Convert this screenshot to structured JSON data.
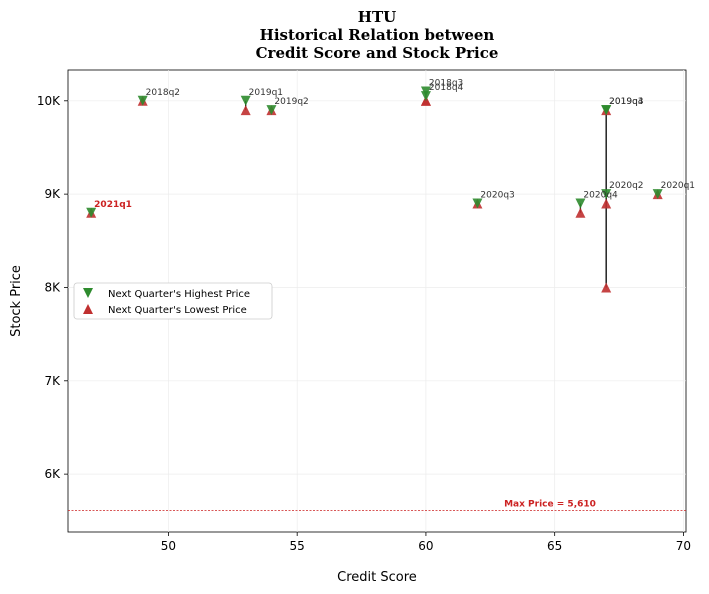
{
  "chart_data": {
    "type": "scatter",
    "title": [
      "HTU",
      "Historical Relation between",
      "Credit Score and Stock Price"
    ],
    "xlabel": "Credit Score",
    "ylabel": "Stock Price",
    "xlim": [
      46.1,
      70.1
    ],
    "ylim": [
      5380,
      10330
    ],
    "xticks": [
      50,
      55,
      60,
      65,
      70
    ],
    "xtick_labels": [
      "50",
      "55",
      "60",
      "65",
      "70"
    ],
    "yticks": [
      6000,
      7000,
      8000,
      9000,
      10000
    ],
    "ytick_labels": [
      "6K",
      "7K",
      "8K",
      "9K",
      "10K"
    ],
    "grid": true,
    "legend_position": "center-left",
    "series": [
      {
        "name": "Next Quarter's Highest Price",
        "marker": "triangle-down",
        "color": "#2e8b2e"
      },
      {
        "name": "Next Quarter's Lowest Price",
        "marker": "triangle-up",
        "color": "#c03030"
      }
    ],
    "points": [
      {
        "label": "2018q2",
        "x": 49,
        "high": 10000,
        "low": 10000
      },
      {
        "label": "2019q1",
        "x": 53,
        "high": 10000,
        "low": 9900
      },
      {
        "label": "2019q2",
        "x": 54,
        "high": 9900,
        "low": 9900
      },
      {
        "label": "2018q3",
        "x": 60,
        "high": 10100,
        "low": 10000
      },
      {
        "label": "2018q4",
        "x": 60,
        "high": 10050,
        "low": 10000
      },
      {
        "label": "2019q3",
        "x": 67,
        "high": 9900,
        "low": 9900
      },
      {
        "label": "2020q1",
        "x": 69,
        "high": 9000,
        "low": 9000
      },
      {
        "label": "2020q2",
        "x": 67,
        "high": 9000,
        "low": 8900
      },
      {
        "label": "2020q3",
        "x": 62,
        "high": 8900,
        "low": 8900
      },
      {
        "label": "2020q4",
        "x": 66,
        "high": 8900,
        "low": 8800
      },
      {
        "label": "2019q4",
        "x": 67,
        "high": 9900,
        "low": 8000
      },
      {
        "label": "2021q1",
        "x": 47,
        "high": 8800,
        "low": 8800,
        "highlight": true
      }
    ],
    "reference_line": {
      "y": 5610,
      "label": "Max Price = 5,610",
      "color": "#cc2222"
    }
  }
}
